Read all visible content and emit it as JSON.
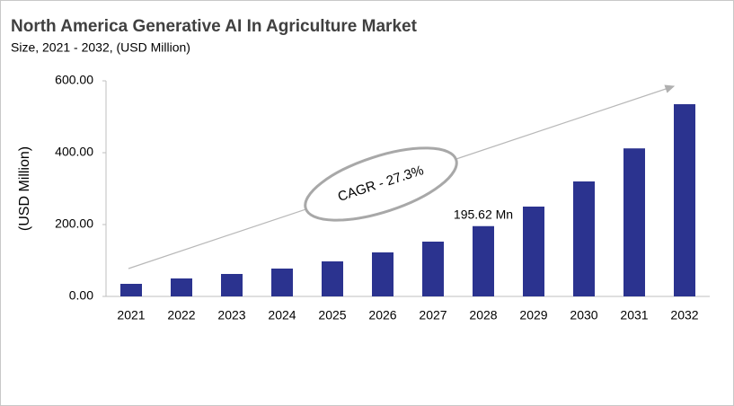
{
  "chart_data": {
    "type": "bar",
    "title": "North America Generative AI In Agriculture Market",
    "subtitle": "Size, 2021 - 2032, (USD Million)",
    "y_label": "(USD Million)",
    "annotation": "CAGR - 27.3%",
    "categories": [
      "2021",
      "2022",
      "2023",
      "2024",
      "2025",
      "2026",
      "2027",
      "2028",
      "2029",
      "2030",
      "2031",
      "2032"
    ],
    "values": [
      35,
      50,
      62.5,
      77.5,
      97.5,
      122.5,
      152.5,
      195.62,
      250,
      320,
      412,
      535
    ],
    "value_labels": [
      null,
      null,
      null,
      null,
      null,
      null,
      null,
      "195.62 Mn",
      null,
      null,
      null,
      null
    ],
    "color": "#2b338f",
    "ylim": [
      0,
      600
    ],
    "yticks": [
      {
        "value": 0,
        "label": "0.00"
      },
      {
        "value": 200,
        "label": "200.00"
      },
      {
        "value": 400,
        "label": "400.00"
      },
      {
        "value": 600,
        "label": "600.00"
      }
    ],
    "grid": false
  }
}
